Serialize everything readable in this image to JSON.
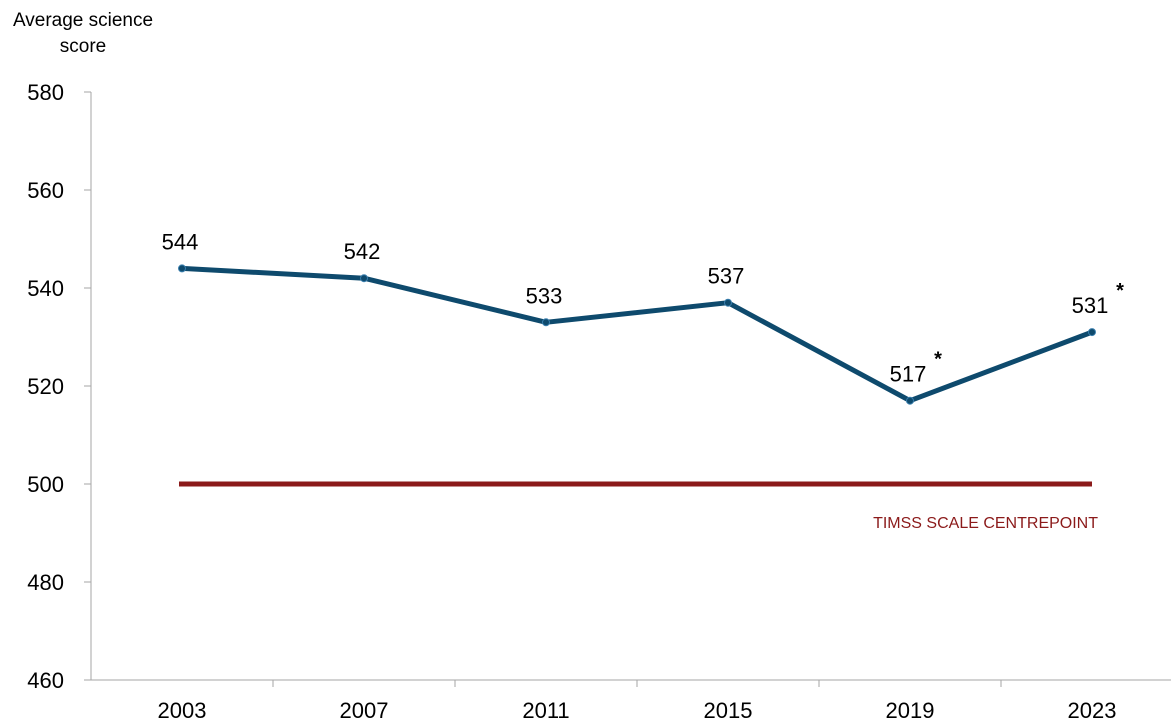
{
  "chart_data": {
    "type": "line",
    "y_label": "Average science score",
    "categories": [
      "2003",
      "2007",
      "2011",
      "2015",
      "2019",
      "2023"
    ],
    "series": [
      {
        "name": "Average science score",
        "color": "#0e4a6d",
        "values": [
          544,
          542,
          533,
          537,
          517,
          531
        ],
        "value_label_notes": [
          null,
          null,
          null,
          null,
          "*",
          "*"
        ]
      }
    ],
    "reference_lines": [
      {
        "value": 500,
        "label": "TIMSS SCALE CENTREPOINT",
        "color": "#8b1a1a"
      }
    ],
    "ylim": [
      460,
      580
    ],
    "yticks": [
      460,
      480,
      500,
      520,
      540,
      560,
      580
    ],
    "grid": false
  }
}
